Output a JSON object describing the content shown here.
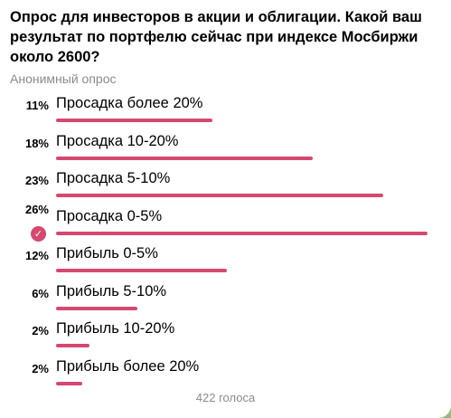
{
  "poll": {
    "question": "Опрос для инвесторов в акции и облигации. Какой ваш результат по портфелю сейчас при индексе Мосбиржи около 2600?",
    "type": "Анонимный опрос",
    "options": [
      {
        "pct": "11%",
        "label": "Просадка более 20%",
        "fraction": 0.42
      },
      {
        "pct": "18%",
        "label": "Просадка 10-20%",
        "fraction": 0.69
      },
      {
        "pct": "23%",
        "label": "Просадка 5-10%",
        "fraction": 0.88
      },
      {
        "pct": "26%",
        "label": "Просадка 0-5%",
        "fraction": 1.0,
        "selected": true
      },
      {
        "pct": "12%",
        "label": "Прибыль 0-5%",
        "fraction": 0.46
      },
      {
        "pct": "6%",
        "label": "Прибыль 5-10%",
        "fraction": 0.22
      },
      {
        "pct": "2%",
        "label": "Прибыль 10-20%",
        "fraction": 0.09
      },
      {
        "pct": "2%",
        "label": "Прибыль более 20%",
        "fraction": 0.07
      }
    ],
    "votes": "422 голоса",
    "bar_color": "#d6486f",
    "check_icon": "check-circle-icon"
  }
}
